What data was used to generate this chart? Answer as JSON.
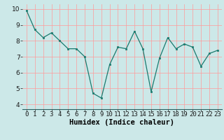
{
  "x": [
    0,
    1,
    2,
    3,
    4,
    5,
    6,
    7,
    8,
    9,
    10,
    11,
    12,
    13,
    14,
    15,
    16,
    17,
    18,
    19,
    20,
    21,
    22,
    23
  ],
  "y": [
    9.9,
    8.7,
    8.2,
    8.5,
    8.0,
    7.5,
    7.5,
    7.0,
    4.7,
    4.4,
    6.5,
    7.6,
    7.5,
    8.6,
    7.5,
    4.8,
    6.9,
    8.2,
    7.5,
    7.8,
    7.6,
    6.4,
    7.2,
    7.4
  ],
  "xlabel": "Humidex (Indice chaleur)",
  "ylim": [
    3.7,
    10.3
  ],
  "xlim": [
    -0.5,
    23.5
  ],
  "yticks": [
    4,
    5,
    6,
    7,
    8,
    9,
    10
  ],
  "xticks": [
    0,
    1,
    2,
    3,
    4,
    5,
    6,
    7,
    8,
    9,
    10,
    11,
    12,
    13,
    14,
    15,
    16,
    17,
    18,
    19,
    20,
    21,
    22,
    23
  ],
  "line_color": "#1a7a6e",
  "marker_color": "#1a7a6e",
  "bg_color": "#cce8e8",
  "grid_color": "#ff9999",
  "xlabel_fontsize": 7.5,
  "tick_fontsize": 6.5
}
